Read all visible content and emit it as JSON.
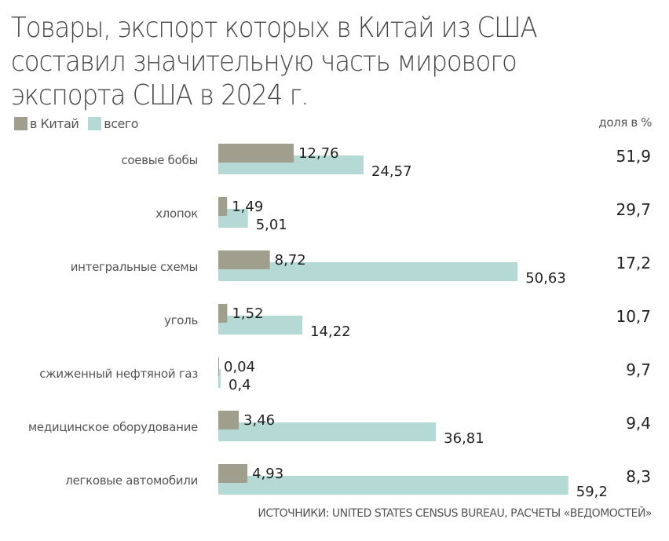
{
  "chart_data": {
    "type": "bar",
    "orientation": "horizontal",
    "title": "Товары, экспорт которых в Китай из США составил значительную часть мирового экспорта США в 2024 г.",
    "title_lines": [
      "Товары, экспорт которых в Китай из США",
      "составил значительную часть мирового",
      "экспорта США в 2024 г."
    ],
    "categories": [
      "соевые бобы",
      "хлопок",
      "интегральные схемы",
      "уголь",
      "сжиженный нефтяной газ",
      "медицинское оборудование",
      "легковые автомобили"
    ],
    "series": [
      {
        "name": "в Китай",
        "color": "#a09f8d",
        "values": [
          12.76,
          1.49,
          8.72,
          1.52,
          0.04,
          3.46,
          4.93
        ],
        "labels": [
          "12,76",
          "1,49",
          "8,72",
          "1,52",
          "0,04",
          "3,46",
          "4,93"
        ]
      },
      {
        "name": "всего",
        "color": "#b5dad5",
        "values": [
          24.57,
          5.01,
          50.63,
          14.22,
          0.4,
          36.81,
          59.2
        ],
        "labels": [
          "24,57",
          "5,01",
          "50,63",
          "14,22",
          "0,4",
          "36,81",
          "59,2"
        ]
      }
    ],
    "share": {
      "header": "доля в %",
      "values": [
        51.9,
        29.7,
        17.2,
        10.7,
        9.7,
        9.4,
        8.3
      ],
      "labels": [
        "51,9",
        "29,7",
        "17,2",
        "10,7",
        "9,7",
        "9,4",
        "8,3"
      ]
    },
    "xlim": [
      0,
      60
    ],
    "grid": false,
    "legend_position": "top-left",
    "source": "ИСТОЧНИКИ: UNITED STATES CENSUS BUREAU, РАСЧЕТЫ «ВЕДОМОСТЕЙ»"
  }
}
